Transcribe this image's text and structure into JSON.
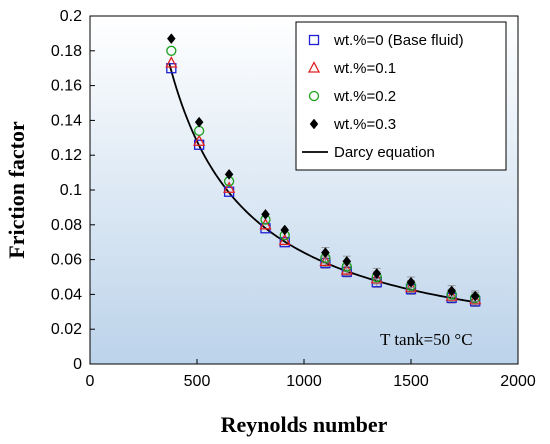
{
  "chart_data": {
    "type": "scatter",
    "xlabel": "Reynolds number",
    "ylabel": "Friction factor",
    "xlim": [
      0,
      2000
    ],
    "ylim": [
      0,
      0.2
    ],
    "x_ticks": [
      "0",
      "500",
      "1000",
      "1500",
      "2000"
    ],
    "y_ticks": [
      "0",
      "0.02",
      "0.04",
      "0.06",
      "0.08",
      "0.1",
      "0.12",
      "0.14",
      "0.16",
      "0.18",
      "0.2"
    ],
    "x": [
      380,
      510,
      650,
      820,
      910,
      1100,
      1200,
      1340,
      1500,
      1690,
      1800
    ],
    "series": [
      {
        "name": "wt.%=0 (Base fluid)",
        "marker": "open-square",
        "color": "#1f1fd6",
        "values": [
          0.17,
          0.126,
          0.099,
          0.078,
          0.07,
          0.058,
          0.053,
          0.047,
          0.043,
          0.038,
          0.036
        ]
      },
      {
        "name": "wt.%=0.1",
        "marker": "open-triangle",
        "color": "#e02020",
        "values": [
          0.173,
          0.128,
          0.101,
          0.08,
          0.071,
          0.059,
          0.054,
          0.049,
          0.044,
          0.039,
          0.037
        ]
      },
      {
        "name": "wt.%=0.2",
        "marker": "open-circle",
        "color": "#1aa01a",
        "values": [
          0.18,
          0.134,
          0.105,
          0.083,
          0.074,
          0.061,
          0.056,
          0.05,
          0.045,
          0.04,
          0.038
        ]
      },
      {
        "name": "wt.%=0.3",
        "marker": "filled-diamond",
        "color": "#000000",
        "values": [
          0.187,
          0.139,
          0.109,
          0.086,
          0.077,
          0.064,
          0.059,
          0.052,
          0.047,
          0.042,
          0.039
        ]
      }
    ],
    "curve": {
      "name": "Darcy equation",
      "color": "#000000",
      "coefficient": 64,
      "x_range": [
        370,
        1810
      ]
    },
    "error_bars": true,
    "legend_position": "top-right",
    "annotation": "T tank=50 °C",
    "plot_background": [
      "#ffffff",
      "#bcd3ea"
    ]
  }
}
